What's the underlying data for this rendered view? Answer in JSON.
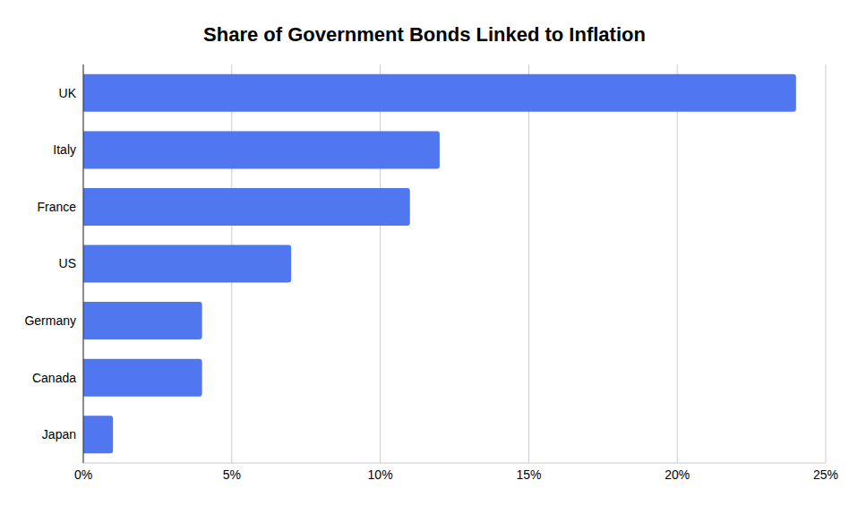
{
  "chart_data": {
    "type": "bar",
    "title": "Share of Government Bonds Linked to Inflation",
    "orientation": "horizontal",
    "categories": [
      "UK",
      "Italy",
      "France",
      "US",
      "Germany",
      "Canada",
      "Japan"
    ],
    "values": [
      24,
      12,
      11,
      7,
      4,
      4,
      1
    ],
    "color": "#5177f0",
    "xlim": [
      0,
      25
    ],
    "xticks": [
      {
        "value": 0,
        "label": "0%"
      },
      {
        "value": 5,
        "label": "5%"
      },
      {
        "value": 10,
        "label": "10%"
      },
      {
        "value": 15,
        "label": "15%"
      },
      {
        "value": 20,
        "label": "20%"
      },
      {
        "value": 25,
        "label": "25%"
      }
    ],
    "grid": true
  }
}
